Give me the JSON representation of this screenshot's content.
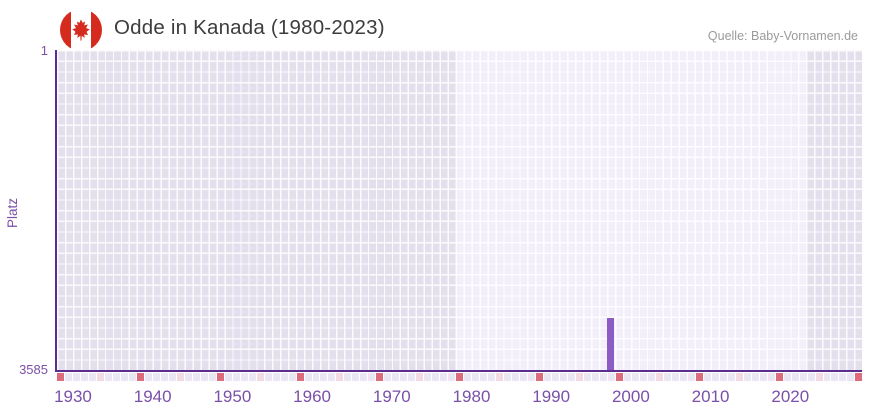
{
  "header": {
    "title": "Odde in Kanada (1980-2023)",
    "flag_icon": "canada-flag-icon",
    "source": "Quelle: Baby-Vornamen.de"
  },
  "chart_data": {
    "type": "bar",
    "title": "Odde in Kanada (1980-2023)",
    "xlabel": "",
    "ylabel": "Platz",
    "y_axis": {
      "label": "Platz",
      "top_tick": "1",
      "bottom_tick": "3585",
      "min": 1,
      "max": 3585,
      "inverted": true
    },
    "x_axis": {
      "start": 1930,
      "end": 2030,
      "tick_labels": [
        "1930",
        "1940",
        "1950",
        "1960",
        "1970",
        "1980",
        "1990",
        "2000",
        "2010",
        "2020"
      ],
      "decade_marks_every": 10,
      "half_decade_marks_every": 5
    },
    "data_range": {
      "start_year": 1980,
      "end_year": 2023
    },
    "series": [
      {
        "name": "Odde",
        "points": [
          {
            "year": 1999,
            "rank": 3000
          }
        ]
      }
    ],
    "legend": null,
    "grid": true,
    "colors": {
      "bar": "#8d5bc6",
      "axis": "#5c2d91",
      "label": "#7a50a8",
      "band_in": "#f2effa",
      "band_out": "#e3dfed",
      "tick_base": "#eae6f3",
      "tick_half": "#f3d9e2",
      "tick_decade": "#dc6c7c",
      "flag_red": "#d52b1e",
      "title_text": "#3d3d3d",
      "source_text": "#9b9b9b"
    }
  }
}
